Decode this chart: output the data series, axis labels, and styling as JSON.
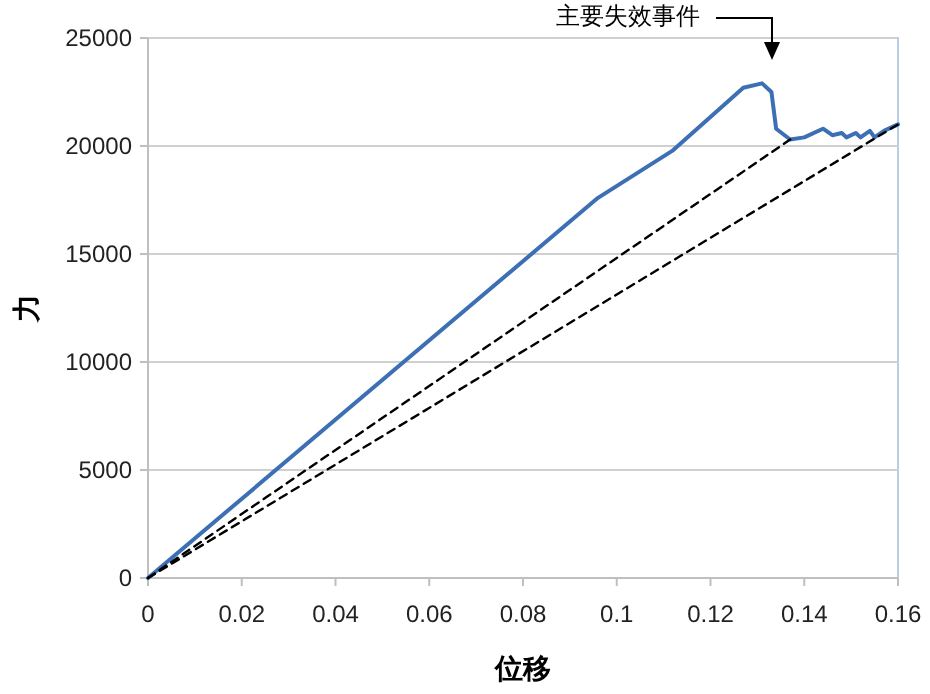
{
  "chart_data": {
    "type": "line",
    "xlabel": "位移",
    "ylabel": "力",
    "xlim": [
      0,
      0.16
    ],
    "ylim": [
      0,
      25000
    ],
    "xticks": [
      0,
      0.02,
      0.04,
      0.06,
      0.08,
      0.1,
      0.12,
      0.14,
      0.16
    ],
    "yticks": [
      0,
      5000,
      10000,
      15000,
      20000,
      25000
    ],
    "grid": "y",
    "marker": "none",
    "annotations": [
      "主要失效事件"
    ],
    "series": [
      {
        "color": "#3d6fb4",
        "line_style": "solid",
        "x": [
          0,
          0.096,
          0.112,
          0.127,
          0.131,
          0.133,
          0.134,
          0.137,
          0.14,
          0.144,
          0.146,
          0.148,
          0.149,
          0.151,
          0.152,
          0.154,
          0.155,
          0.157,
          0.16
        ],
        "values": [
          0,
          17600,
          19800,
          22700,
          22900,
          22500,
          20800,
          20300,
          20400,
          20800,
          20500,
          20600,
          20400,
          20600,
          20400,
          20700,
          20400,
          20700,
          21000
        ]
      },
      {
        "color": "#000000",
        "line_style": "dashed",
        "x": [
          0,
          0.137
        ],
        "values": [
          0,
          20300
        ]
      },
      {
        "color": "#000000",
        "line_style": "dashed",
        "x": [
          0,
          0.16
        ],
        "values": [
          0,
          21000
        ]
      }
    ]
  }
}
